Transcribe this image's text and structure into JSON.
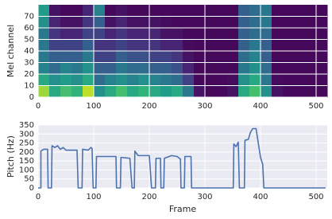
{
  "chart_data": [
    {
      "type": "heatmap",
      "ylabel": "Mel channel",
      "colormap": "viridis",
      "zlim": [
        0,
        1
      ],
      "xlim": [
        0,
        520
      ],
      "xticks": [
        0,
        100,
        200,
        300,
        400,
        500
      ],
      "ylim": [
        0,
        80
      ],
      "yticks": [
        0,
        10,
        20,
        30,
        40,
        50,
        60,
        70
      ],
      "grid": true,
      "z": [
        [
          0.85,
          0.6,
          0.7,
          0.65,
          0.9,
          0.5,
          0.6,
          0.7,
          0.6,
          0.65,
          0.6,
          0.55,
          0.6,
          0.4,
          0.05,
          0.02,
          0.02,
          0.05,
          0.6,
          0.7,
          0.5,
          0.05,
          0.02,
          0.02,
          0.02,
          0.02
        ],
        [
          0.6,
          0.5,
          0.55,
          0.5,
          0.6,
          0.35,
          0.45,
          0.5,
          0.45,
          0.5,
          0.45,
          0.4,
          0.35,
          0.2,
          0.02,
          0.02,
          0.02,
          0.03,
          0.5,
          0.6,
          0.4,
          0.03,
          0.02,
          0.02,
          0.02,
          0.02
        ],
        [
          0.45,
          0.35,
          0.45,
          0.4,
          0.5,
          0.3,
          0.3,
          0.4,
          0.35,
          0.35,
          0.3,
          0.3,
          0.25,
          0.1,
          0.02,
          0.02,
          0.02,
          0.02,
          0.4,
          0.5,
          0.35,
          0.02,
          0.02,
          0.02,
          0.02,
          0.02
        ],
        [
          0.4,
          0.3,
          0.3,
          0.3,
          0.4,
          0.2,
          0.2,
          0.3,
          0.25,
          0.25,
          0.2,
          0.2,
          0.15,
          0.05,
          0.02,
          0.02,
          0.02,
          0.02,
          0.35,
          0.45,
          0.3,
          0.02,
          0.02,
          0.02,
          0.02,
          0.02
        ],
        [
          0.4,
          0.2,
          0.2,
          0.2,
          0.3,
          0.15,
          0.15,
          0.2,
          0.15,
          0.15,
          0.15,
          0.1,
          0.1,
          0.03,
          0.02,
          0.02,
          0.02,
          0.02,
          0.3,
          0.4,
          0.3,
          0.02,
          0.02,
          0.02,
          0.02,
          0.02
        ],
        [
          0.4,
          0.15,
          0.1,
          0.1,
          0.2,
          0.2,
          0.1,
          0.15,
          0.1,
          0.1,
          0.1,
          0.05,
          0.05,
          0.02,
          0.02,
          0.02,
          0.02,
          0.02,
          0.3,
          0.35,
          0.35,
          0.02,
          0.02,
          0.02,
          0.02,
          0.02
        ],
        [
          0.5,
          0.1,
          0.05,
          0.05,
          0.15,
          0.3,
          0.05,
          0.1,
          0.05,
          0.05,
          0.05,
          0.03,
          0.02,
          0.02,
          0.02,
          0.02,
          0.02,
          0.02,
          0.3,
          0.35,
          0.4,
          0.02,
          0.02,
          0.02,
          0.02,
          0.02
        ],
        [
          0.55,
          0.05,
          0.02,
          0.02,
          0.1,
          0.45,
          0.02,
          0.05,
          0.02,
          0.02,
          0.02,
          0.02,
          0.02,
          0.02,
          0.02,
          0.02,
          0.02,
          0.02,
          0.3,
          0.35,
          0.4,
          0.02,
          0.02,
          0.02,
          0.02,
          0.02
        ]
      ]
    },
    {
      "type": "line",
      "xlabel": "Frame",
      "ylabel": "Pitch (Hz)",
      "color": "#4c72b0",
      "xlim": [
        0,
        520
      ],
      "xticks": [
        0,
        100,
        200,
        300,
        400,
        500
      ],
      "ylim": [
        0,
        350
      ],
      "yticks": [
        0,
        50,
        100,
        150,
        200,
        250,
        300,
        350
      ],
      "grid": true,
      "x": [
        0,
        5,
        5,
        10,
        17,
        18,
        24,
        25,
        30,
        35,
        40,
        45,
        50,
        70,
        72,
        79,
        80,
        90,
        95,
        97,
        99,
        104,
        105,
        140,
        141,
        148,
        149,
        165,
        169,
        173,
        174,
        180,
        200,
        204,
        211,
        212,
        220,
        221,
        226,
        227,
        240,
        250,
        256,
        257,
        263,
        264,
        275,
        276,
        351,
        352,
        356,
        360,
        362,
        371,
        372,
        378,
        382,
        386,
        392,
        396,
        400,
        404,
        406,
        517
      ],
      "values": [
        0,
        0,
        205,
        215,
        215,
        0,
        0,
        235,
        225,
        235,
        215,
        225,
        210,
        210,
        0,
        0,
        215,
        210,
        225,
        220,
        0,
        0,
        175,
        175,
        0,
        0,
        170,
        165,
        0,
        0,
        205,
        180,
        180,
        0,
        0,
        165,
        165,
        0,
        0,
        165,
        180,
        175,
        160,
        0,
        0,
        175,
        175,
        0,
        0,
        245,
        230,
        255,
        0,
        0,
        265,
        270,
        310,
        330,
        330,
        250,
        170,
        130,
        0,
        0
      ]
    }
  ]
}
